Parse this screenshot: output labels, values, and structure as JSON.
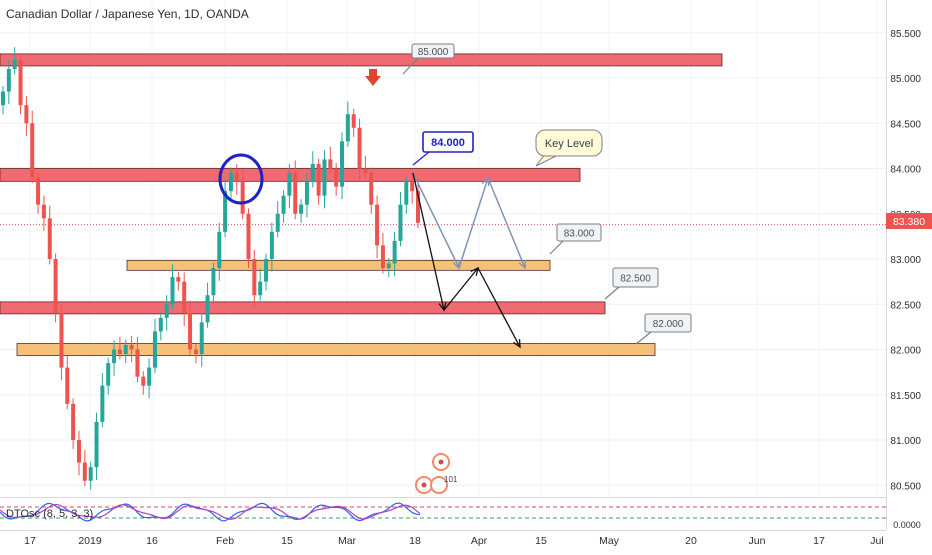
{
  "header": {
    "title": "Canadian Dollar / Japanese Yen, 1D, OANDA"
  },
  "chart_data": {
    "type": "candlestick",
    "symbol": "CADJPY",
    "interval": "1D",
    "broker": "OANDA",
    "title": "Canadian Dollar / Japanese Yen, 1D, OANDA",
    "ylim": [
      80.3,
      85.7
    ],
    "y_ticks": [
      "85.500",
      "85.000",
      "84.500",
      "84.000",
      "83.500",
      "83.000",
      "82.500",
      "82.000",
      "81.500",
      "81.000",
      "80.500"
    ],
    "x_ticks": [
      "17",
      "2019",
      "16",
      "Feb",
      "15",
      "Mar",
      "18",
      "Apr",
      "15",
      "May",
      "20",
      "Jun",
      "17",
      "Jul"
    ],
    "current_price": "83.380",
    "candles_close": [
      84.85,
      85.1,
      85.2,
      84.7,
      84.5,
      83.9,
      83.6,
      83.45,
      83.0,
      82.4,
      81.8,
      81.4,
      81.0,
      80.75,
      80.55,
      80.7,
      81.2,
      81.6,
      81.85,
      82.0,
      81.95,
      82.05,
      82.0,
      81.7,
      81.6,
      81.8,
      82.2,
      82.35,
      82.5,
      82.8,
      82.75,
      82.4,
      82.0,
      81.95,
      82.3,
      82.6,
      82.9,
      83.3,
      83.75,
      83.95,
      83.85,
      83.5,
      83.0,
      82.6,
      82.75,
      83.0,
      83.3,
      83.5,
      83.7,
      83.95,
      83.5,
      83.6,
      83.85,
      84.05,
      83.7,
      84.1,
      84.0,
      83.8,
      84.3,
      84.6,
      84.45,
      84.0,
      83.95,
      83.6,
      83.15,
      82.9,
      82.95,
      83.2,
      83.6,
      83.85,
      83.75,
      83.4
    ],
    "indicator": {
      "name": "DTOsc",
      "params": "(8, 5, 3, 3)",
      "label": "DTOsc (8, 5, 3, 3)",
      "axis_label": "0.0000"
    },
    "annotations": {
      "levels": [
        {
          "label": "85.000",
          "price": 85.2,
          "color": "#f06a72"
        },
        {
          "label": "84.000",
          "price": 83.93,
          "color": "#f06a72",
          "callout_style": "blue"
        },
        {
          "label": "83.000",
          "price": 82.93,
          "color": "#f5c07a"
        },
        {
          "label": "82.500",
          "price": 82.46,
          "color": "#f06a72"
        },
        {
          "label": "82.000",
          "price": 82.0,
          "color": "#f5c07a"
        }
      ],
      "key_level_note": "Key Level",
      "icon_badge_count": "101"
    }
  },
  "colors": {
    "up": "#26a69a",
    "down": "#ef5350",
    "resistance_zone": "#f06a72",
    "support_zone": "#f5c07a",
    "blue_marker": "#1e22c9",
    "projection_path": "#7f93b8"
  }
}
